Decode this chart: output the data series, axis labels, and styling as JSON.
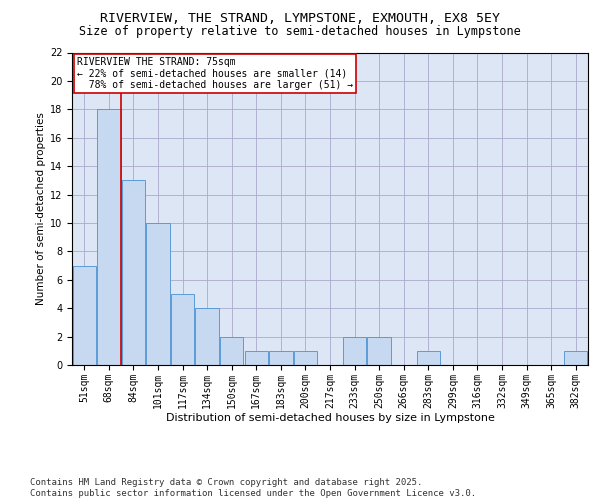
{
  "title": "RIVERVIEW, THE STRAND, LYMPSTONE, EXMOUTH, EX8 5EY",
  "subtitle": "Size of property relative to semi-detached houses in Lympstone",
  "xlabel": "Distribution of semi-detached houses by size in Lympstone",
  "ylabel": "Number of semi-detached properties",
  "categories": [
    "51sqm",
    "68sqm",
    "84sqm",
    "101sqm",
    "117sqm",
    "134sqm",
    "150sqm",
    "167sqm",
    "183sqm",
    "200sqm",
    "217sqm",
    "233sqm",
    "250sqm",
    "266sqm",
    "283sqm",
    "299sqm",
    "316sqm",
    "332sqm",
    "349sqm",
    "365sqm",
    "382sqm"
  ],
  "values": [
    7,
    18,
    13,
    10,
    5,
    4,
    2,
    1,
    1,
    1,
    0,
    2,
    2,
    0,
    1,
    0,
    0,
    0,
    0,
    0,
    1
  ],
  "bar_color": "#c6d9f0",
  "bar_edge_color": "#5b9bd5",
  "subject_line_color": "#cc0000",
  "subject_label": "RIVERVIEW THE STRAND: 75sqm",
  "pct_smaller": "22% of semi-detached houses are smaller (14)",
  "pct_larger": "78% of semi-detached houses are larger (51)",
  "annotation_box_color": "#ffffff",
  "annotation_box_edge": "#cc0000",
  "grid_color": "#aaaacc",
  "background_color": "#dce6f5",
  "ylim": [
    0,
    22
  ],
  "yticks": [
    0,
    2,
    4,
    6,
    8,
    10,
    12,
    14,
    16,
    18,
    20,
    22
  ],
  "footer": "Contains HM Land Registry data © Crown copyright and database right 2025.\nContains public sector information licensed under the Open Government Licence v3.0.",
  "title_fontsize": 9.5,
  "subtitle_fontsize": 8.5,
  "xlabel_fontsize": 8,
  "ylabel_fontsize": 7.5,
  "tick_fontsize": 7,
  "annotation_fontsize": 7,
  "footer_fontsize": 6.5
}
